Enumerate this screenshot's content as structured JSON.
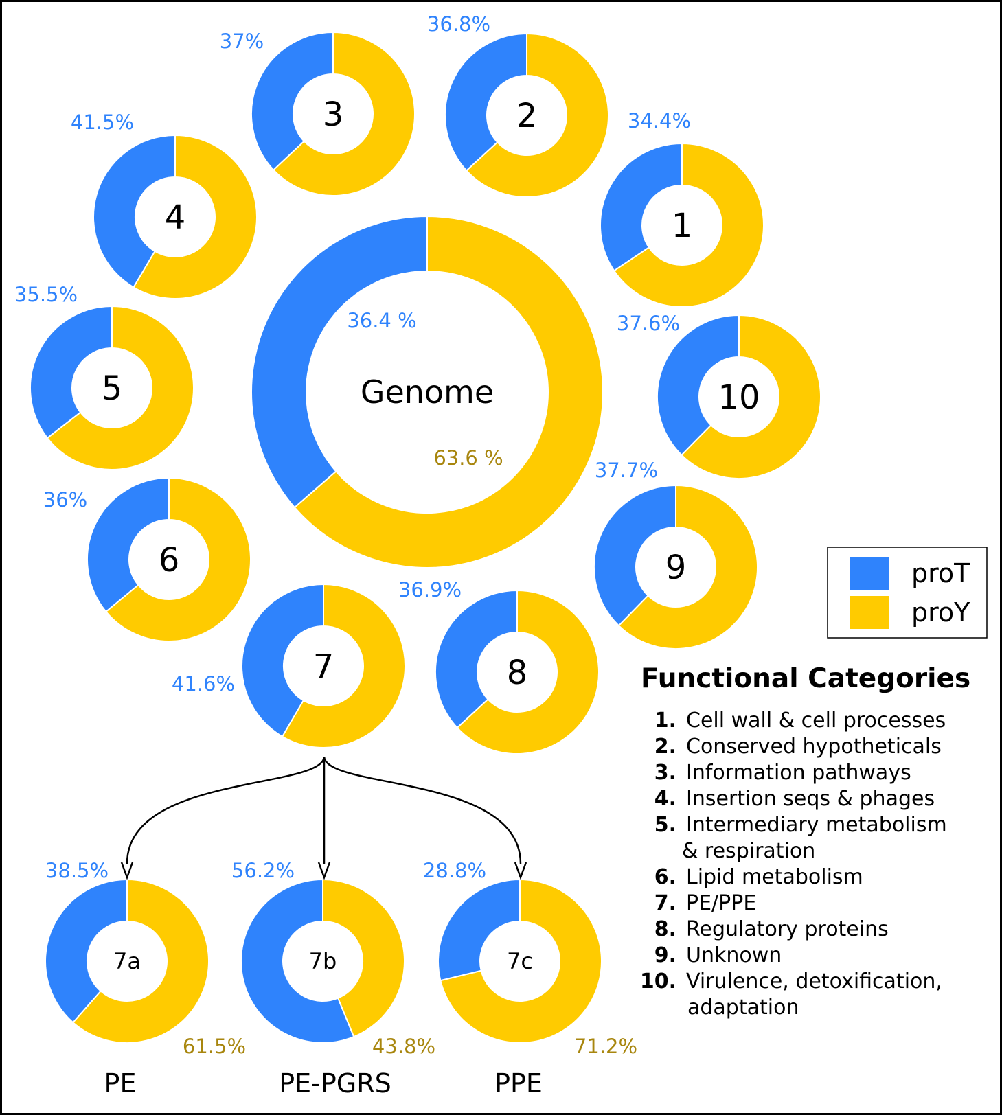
{
  "colors": {
    "proT": "#2f83fc",
    "proY": "#ffcb00",
    "proT_text": "#2f83fc",
    "proY_text": "#a8860e",
    "outline": "#000000"
  },
  "legend": {
    "items": [
      {
        "name": "proT",
        "color": "#2f83fc"
      },
      {
        "name": "proY",
        "color": "#ffcb00"
      }
    ]
  },
  "functional_categories": {
    "title": "Functional Categories",
    "items": [
      {
        "num": "1.",
        "lines": [
          "Cell wall & cell processes"
        ]
      },
      {
        "num": "2.",
        "lines": [
          "Conserved hypotheticals"
        ]
      },
      {
        "num": "3.",
        "lines": [
          "Information pathways"
        ]
      },
      {
        "num": "4.",
        "lines": [
          "Insertion seqs & phages"
        ]
      },
      {
        "num": "5.",
        "lines": [
          "Intermediary metabolism",
          "& respiration"
        ]
      },
      {
        "num": "6.",
        "lines": [
          "Lipid metabolism"
        ]
      },
      {
        "num": "7.",
        "lines": [
          "PE/PPE"
        ]
      },
      {
        "num": "8.",
        "lines": [
          "Regulatory proteins"
        ]
      },
      {
        "num": "9.",
        "lines": [
          "Unknown"
        ]
      },
      {
        "num": "10.",
        "lines": [
          "Virulence, detoxification,",
          "adaptation"
        ]
      }
    ]
  },
  "chart_data": [
    {
      "type": "pie",
      "variant": "donut",
      "center_label": "Genome",
      "values": {
        "proT": 36.4,
        "proY": 63.6
      },
      "labels": {
        "proT": "36.4 %",
        "proY": "63.6 %"
      }
    },
    {
      "type": "pie",
      "variant": "donut",
      "center_label": "1",
      "values": {
        "proT": 34.4,
        "proY": 65.6
      },
      "labels": {
        "proT": "34.4%"
      }
    },
    {
      "type": "pie",
      "variant": "donut",
      "center_label": "2",
      "values": {
        "proT": 36.8,
        "proY": 63.2
      },
      "labels": {
        "proT": "36.8%"
      }
    },
    {
      "type": "pie",
      "variant": "donut",
      "center_label": "3",
      "values": {
        "proT": 37,
        "proY": 63
      },
      "labels": {
        "proT": "37%"
      }
    },
    {
      "type": "pie",
      "variant": "donut",
      "center_label": "4",
      "values": {
        "proT": 41.5,
        "proY": 58.5
      },
      "labels": {
        "proT": "41.5%"
      }
    },
    {
      "type": "pie",
      "variant": "donut",
      "center_label": "5",
      "values": {
        "proT": 35.5,
        "proY": 64.5
      },
      "labels": {
        "proT": "35.5%"
      }
    },
    {
      "type": "pie",
      "variant": "donut",
      "center_label": "6",
      "values": {
        "proT": 36,
        "proY": 64
      },
      "labels": {
        "proT": "36%"
      }
    },
    {
      "type": "pie",
      "variant": "donut",
      "center_label": "7",
      "values": {
        "proT": 41.6,
        "proY": 58.4
      },
      "labels": {
        "proT": "41.6%"
      }
    },
    {
      "type": "pie",
      "variant": "donut",
      "center_label": "8",
      "values": {
        "proT": 36.9,
        "proY": 63.1
      },
      "labels": {
        "proT": "36.9%"
      }
    },
    {
      "type": "pie",
      "variant": "donut",
      "center_label": "9",
      "values": {
        "proT": 37.7,
        "proY": 62.3
      },
      "labels": {
        "proT": "37.7%"
      }
    },
    {
      "type": "pie",
      "variant": "donut",
      "center_label": "10",
      "values": {
        "proT": 37.6,
        "proY": 62.4
      },
      "labels": {
        "proT": "37.6%"
      }
    },
    {
      "type": "pie",
      "variant": "donut",
      "center_label": "7a",
      "name": "PE",
      "values": {
        "proT": 38.5,
        "proY": 61.5
      },
      "labels": {
        "proT": "38.5%",
        "proY": "61.5%"
      }
    },
    {
      "type": "pie",
      "variant": "donut",
      "center_label": "7b",
      "name": "PE-PGRS",
      "values": {
        "proT": 56.2,
        "proY": 43.8
      },
      "labels": {
        "proT": "56.2%",
        "proY": "43.8%"
      }
    },
    {
      "type": "pie",
      "variant": "donut",
      "center_label": "7c",
      "name": "PPE",
      "values": {
        "proT": 28.8,
        "proY": 71.2
      },
      "labels": {
        "proT": "28.8%",
        "proY": "71.2%"
      }
    }
  ]
}
